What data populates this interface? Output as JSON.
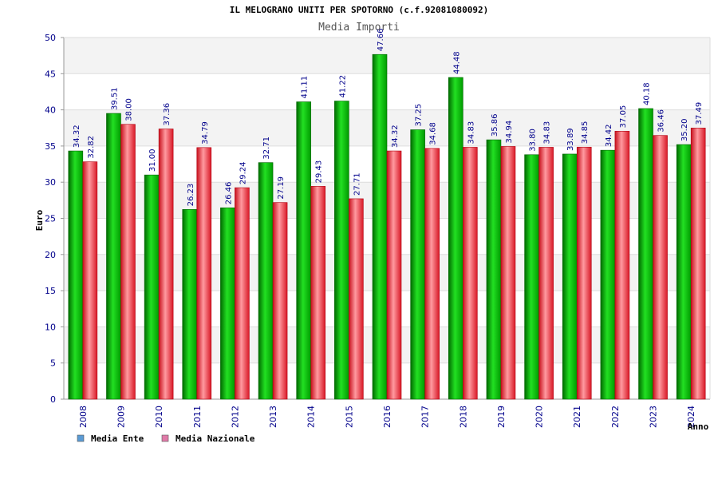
{
  "chart_data": {
    "type": "bar",
    "title": "IL MELOGRANO UNITI PER SPOTORNO (c.f.92081080092)",
    "subtitle": "Media Importi",
    "xlabel": "Anno",
    "ylabel": "Euro",
    "ylim": [
      0,
      50
    ],
    "yticks": [
      0,
      5,
      10,
      15,
      20,
      25,
      30,
      35,
      40,
      45,
      50
    ],
    "grid": true,
    "legend_position": "bottom-left",
    "categories": [
      "2008",
      "2009",
      "2010",
      "2011",
      "2012",
      "2013",
      "2014",
      "2015",
      "2016",
      "2017",
      "2018",
      "2019",
      "2020",
      "2021",
      "2022",
      "2023",
      "2024"
    ],
    "series": [
      {
        "name": "Media Ente",
        "color": "#00aa00",
        "legend_color": "#5b9bd5",
        "values": [
          34.32,
          39.51,
          31.0,
          26.23,
          26.46,
          32.71,
          41.11,
          41.22,
          47.66,
          37.25,
          44.48,
          35.86,
          33.8,
          33.89,
          34.42,
          40.18,
          35.2
        ],
        "labels": [
          "34.32",
          "39.51",
          "31.00",
          "26.23",
          "26.46",
          "32.71",
          "41.11",
          "41.22",
          "47.66",
          "37.25",
          "44.48",
          "35.86",
          "33.80",
          "33.89",
          "34.42",
          "40.18",
          "35.20"
        ]
      },
      {
        "name": "Media Nazionale",
        "color": "#e8202e",
        "legend_color": "#e07aa8",
        "values": [
          32.82,
          38.0,
          37.36,
          34.79,
          29.24,
          27.19,
          29.43,
          27.71,
          34.32,
          34.68,
          34.83,
          34.94,
          34.83,
          34.85,
          37.05,
          36.46,
          37.49
        ],
        "labels": [
          "32.82",
          "38.00",
          "37.36",
          "34.79",
          "29.24",
          "27.19",
          "29.43",
          "27.71",
          "34.32",
          "34.68",
          "34.83",
          "34.94",
          "34.83",
          "34.85",
          "37.05",
          "36.46",
          "37.49"
        ]
      }
    ]
  }
}
